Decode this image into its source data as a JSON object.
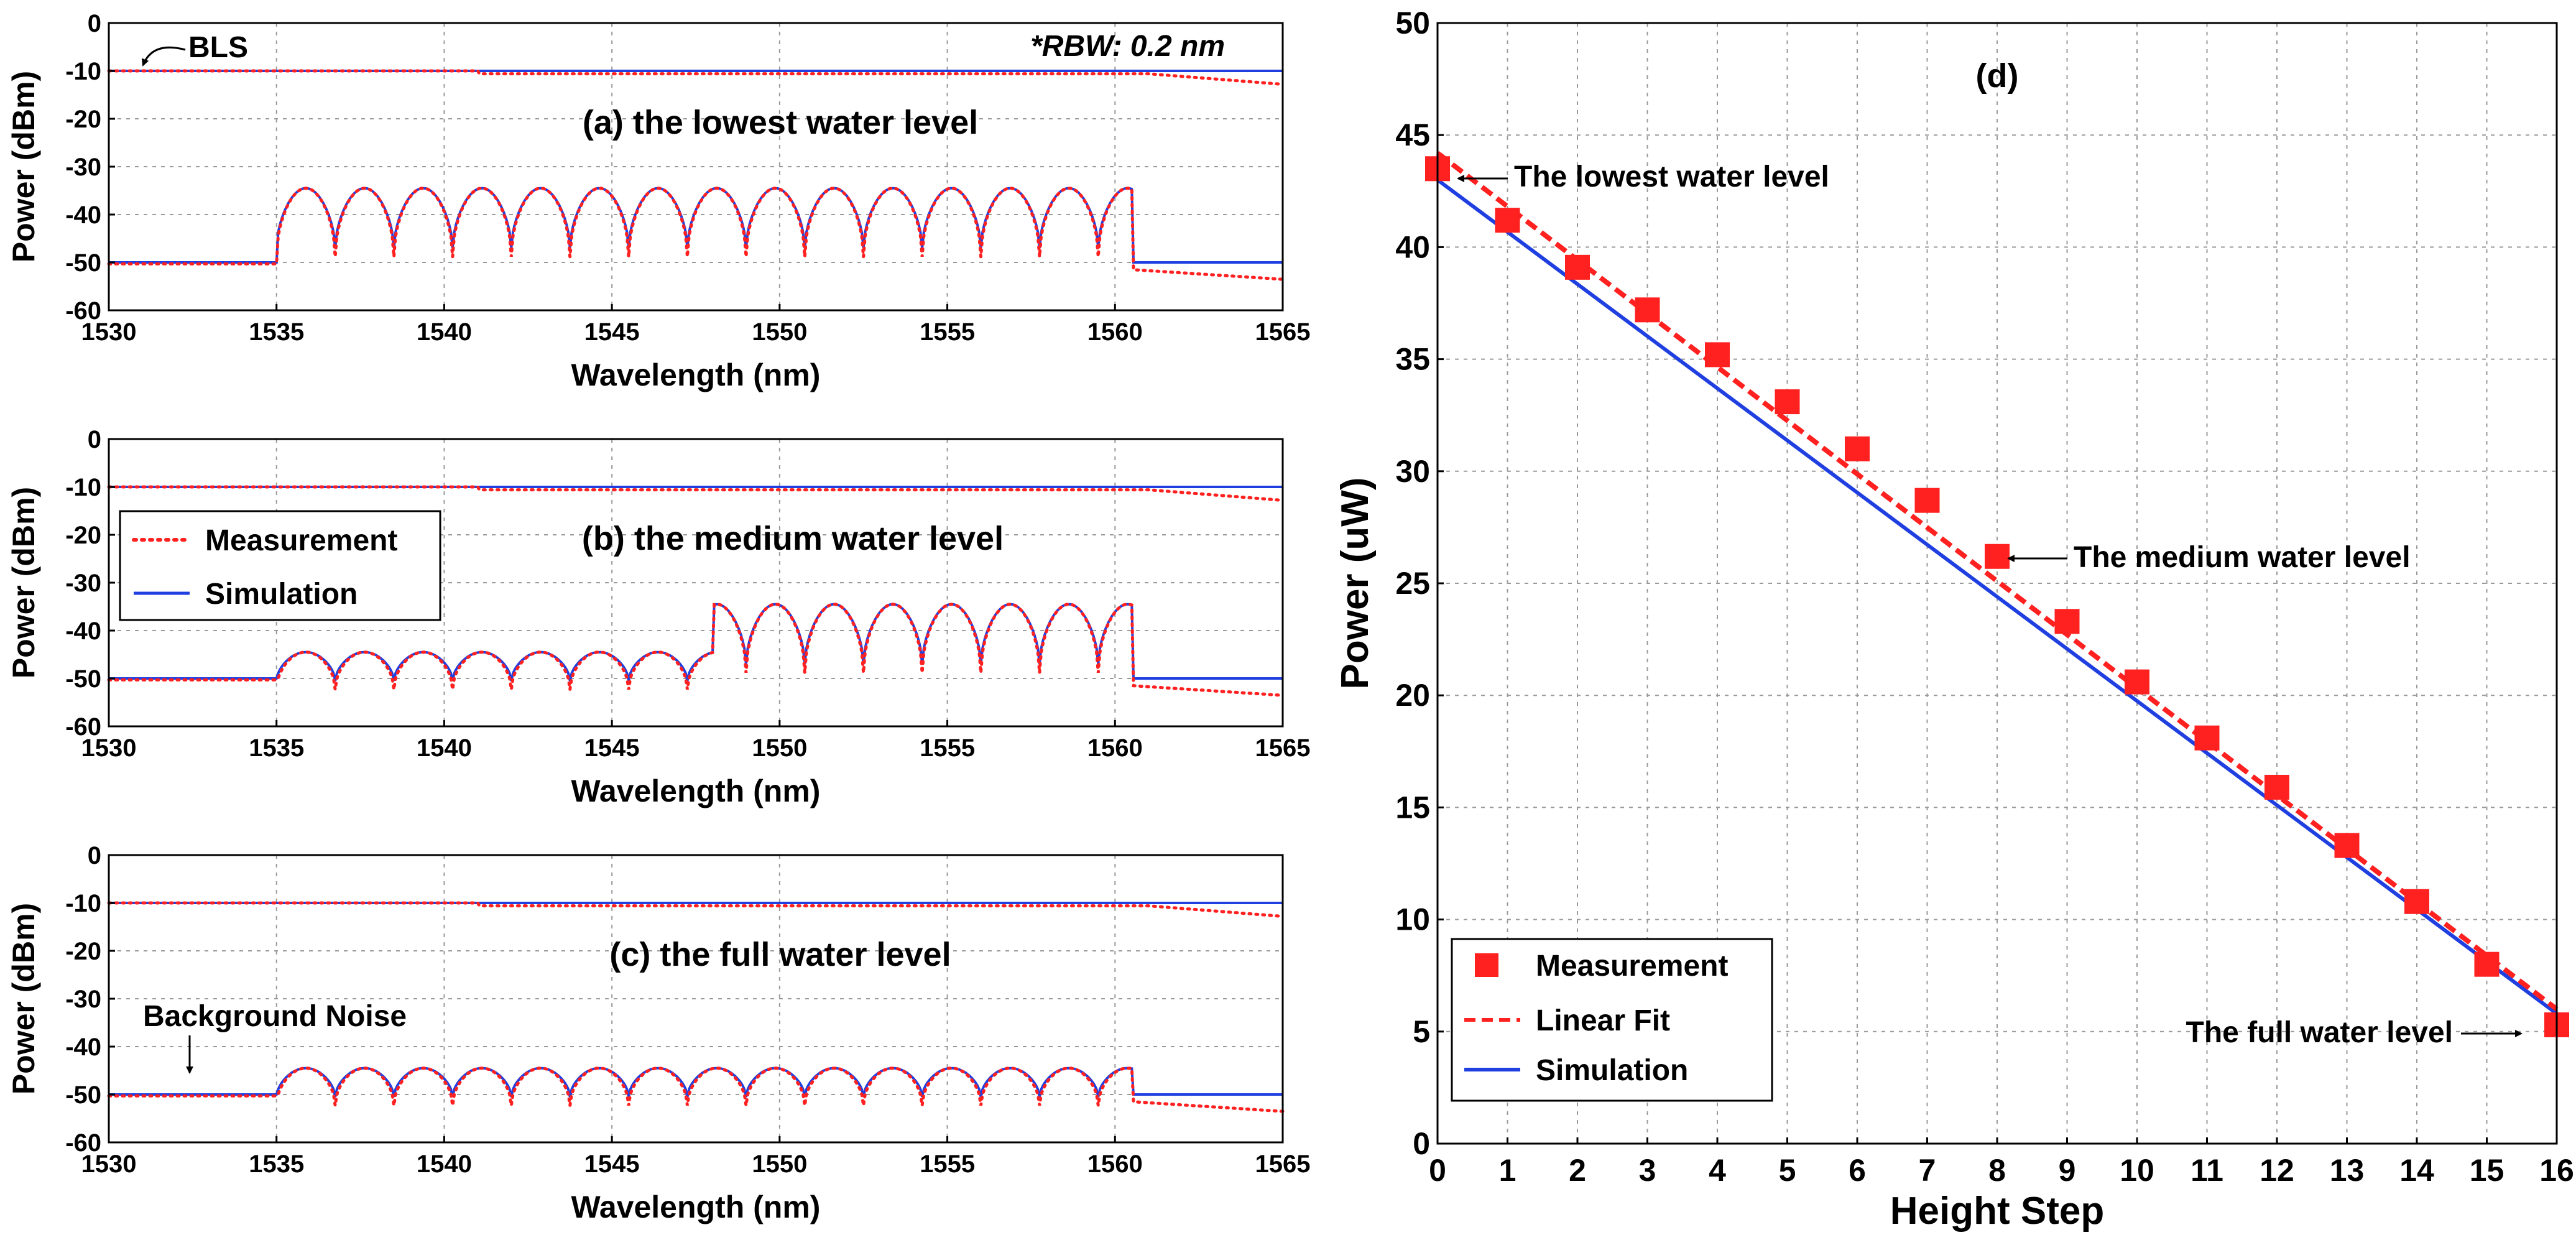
{
  "colors": {
    "measurement": "#ff2020",
    "simulation": "#1f3fe0",
    "text": "#000000",
    "grid": "#9a9a9a"
  },
  "chart_data": [
    {
      "id": "a",
      "type": "line",
      "title": "(a) the lowest water level",
      "xlabel": "Wavelength (nm)",
      "ylabel": "Power (dBm)",
      "xlim": [
        1530,
        1565
      ],
      "ylim": [
        -60,
        0
      ],
      "xticks": [
        "1530",
        "1535",
        "1540",
        "1545",
        "1550",
        "1555",
        "1560",
        "1565"
      ],
      "yticks": [
        "0",
        "-10",
        "-20",
        "-30",
        "-40",
        "-50",
        "-60"
      ],
      "annotations": [
        "BLS",
        "*RBW: 0.2 nm"
      ],
      "spectrum": {
        "band": [
          1535,
          1560.5
        ],
        "floor_dBm": -50,
        "bls_dBm": -10,
        "low_peak_dBm": -34.5,
        "low_dip_dBm": -47,
        "high_peak_dBm": -34.5,
        "high_dip_dBm": -47,
        "switch_nm": 1535,
        "ripple_period_nm": 1.75
      },
      "series": [
        {
          "name": "Measurement",
          "style": "dotted"
        },
        {
          "name": "Simulation",
          "style": "solid"
        }
      ]
    },
    {
      "id": "b",
      "type": "line",
      "title": "(b) the medium water level",
      "xlabel": "Wavelength (nm)",
      "ylabel": "Power (dBm)",
      "xlim": [
        1530,
        1565
      ],
      "ylim": [
        -60,
        0
      ],
      "xticks": [
        "1530",
        "1535",
        "1540",
        "1545",
        "1550",
        "1555",
        "1560",
        "1565"
      ],
      "yticks": [
        "0",
        "-10",
        "-20",
        "-30",
        "-40",
        "-50",
        "-60"
      ],
      "legend": [
        "Measurement",
        "Simulation"
      ],
      "spectrum": {
        "band": [
          1535,
          1560.5
        ],
        "floor_dBm": -50,
        "bls_dBm": -10,
        "low_peak_dBm": -44.5,
        "low_dip_dBm": -50.5,
        "high_peak_dBm": -34.5,
        "high_dip_dBm": -47,
        "switch_nm": 1548,
        "ripple_period_nm": 1.75
      },
      "series": [
        {
          "name": "Measurement",
          "style": "dotted"
        },
        {
          "name": "Simulation",
          "style": "solid"
        }
      ]
    },
    {
      "id": "c",
      "type": "line",
      "title": "(c) the full water level",
      "xlabel": "Wavelength (nm)",
      "ylabel": "Power (dBm)",
      "xlim": [
        1530,
        1565
      ],
      "ylim": [
        -60,
        0
      ],
      "xticks": [
        "1530",
        "1535",
        "1540",
        "1545",
        "1550",
        "1555",
        "1560",
        "1565"
      ],
      "yticks": [
        "0",
        "-10",
        "-20",
        "-30",
        "-40",
        "-50",
        "-60"
      ],
      "annotations": [
        "Background Noise"
      ],
      "spectrum": {
        "band": [
          1535,
          1560.5
        ],
        "floor_dBm": -50,
        "bls_dBm": -10,
        "low_peak_dBm": -44.5,
        "low_dip_dBm": -50.5,
        "high_peak_dBm": -44.5,
        "high_dip_dBm": -50.5,
        "switch_nm": 1561,
        "ripple_period_nm": 1.75
      },
      "series": [
        {
          "name": "Measurement",
          "style": "dotted"
        },
        {
          "name": "Simulation",
          "style": "solid"
        }
      ]
    },
    {
      "id": "d",
      "type": "scatter",
      "title": "(d)",
      "xlabel": "Height Step",
      "ylabel": "Power (uW)",
      "xlim": [
        0,
        16
      ],
      "ylim": [
        0,
        50
      ],
      "xticks": [
        "0",
        "1",
        "2",
        "3",
        "4",
        "5",
        "6",
        "7",
        "8",
        "9",
        "10",
        "11",
        "12",
        "13",
        "14",
        "15",
        "16"
      ],
      "yticks": [
        "0",
        "5",
        "10",
        "15",
        "20",
        "25",
        "30",
        "35",
        "40",
        "45",
        "50"
      ],
      "legend": [
        "Measurement",
        "Linear Fit",
        "Simulation"
      ],
      "annotations": [
        "The lowest water level",
        "The medium water level",
        "The full water level"
      ],
      "measurement": {
        "x": [
          0,
          1,
          2,
          3,
          4,
          5,
          6,
          7,
          8,
          9,
          10,
          11,
          12,
          13,
          14,
          15,
          16
        ],
        "y": [
          43.5,
          41.2,
          39.1,
          37.2,
          35.2,
          33.1,
          31.0,
          28.7,
          26.2,
          23.3,
          20.6,
          18.1,
          15.9,
          13.3,
          10.8,
          8.0,
          5.3
        ]
      },
      "linear_fit": {
        "x": [
          0,
          16
        ],
        "y": [
          44.2,
          6.0
        ]
      },
      "simulation": {
        "x": [
          0,
          16
        ],
        "y": [
          43.0,
          5.8
        ]
      }
    }
  ]
}
